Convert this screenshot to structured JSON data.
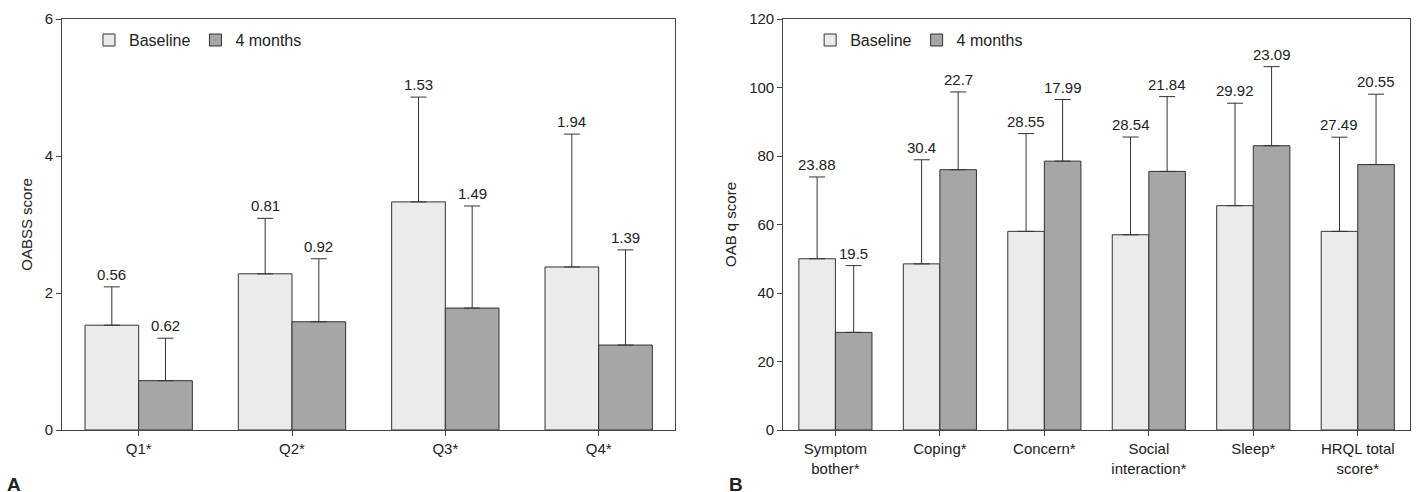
{
  "chart_data": [
    {
      "type": "bar",
      "panel": "A",
      "y_label": "OABSS score",
      "categories": [
        "Q1*",
        "Q2*",
        "Q3*",
        "Q4*"
      ],
      "series": [
        {
          "name": "Baseline",
          "color": "#ebebeb",
          "values": [
            1.53,
            2.28,
            3.33,
            2.38
          ],
          "error": [
            0.56,
            0.81,
            1.53,
            1.94
          ]
        },
        {
          "name": "4 months",
          "color": "#a6a6a6",
          "values": [
            0.72,
            1.58,
            1.78,
            1.24
          ],
          "error": [
            0.62,
            0.92,
            1.49,
            1.39
          ]
        }
      ],
      "ylim": [
        0,
        6
      ],
      "yticks": [
        0,
        2,
        4,
        6
      ],
      "grid": false,
      "legend": "upper left"
    },
    {
      "type": "bar",
      "panel": "B",
      "y_label": "OAB q score",
      "categories": [
        "Symptom bother*",
        "Coping*",
        "Concern*",
        "Social interaction*",
        "Sleep*",
        "HRQL total score*"
      ],
      "series": [
        {
          "name": "Baseline",
          "color": "#ebebeb",
          "values": [
            50,
            48.5,
            58,
            57,
            65.5,
            58
          ],
          "error": [
            23.88,
            30.4,
            28.55,
            28.54,
            29.92,
            27.49
          ]
        },
        {
          "name": "4 months",
          "color": "#a6a6a6",
          "values": [
            28.5,
            76,
            78.5,
            75.5,
            83,
            77.5
          ],
          "error": [
            19.5,
            22.7,
            17.99,
            21.84,
            23.09,
            20.55
          ]
        }
      ],
      "ylim": [
        0,
        120
      ],
      "yticks": [
        0,
        20,
        40,
        60,
        80,
        100,
        120
      ],
      "grid": false,
      "legend": "upper left"
    }
  ]
}
